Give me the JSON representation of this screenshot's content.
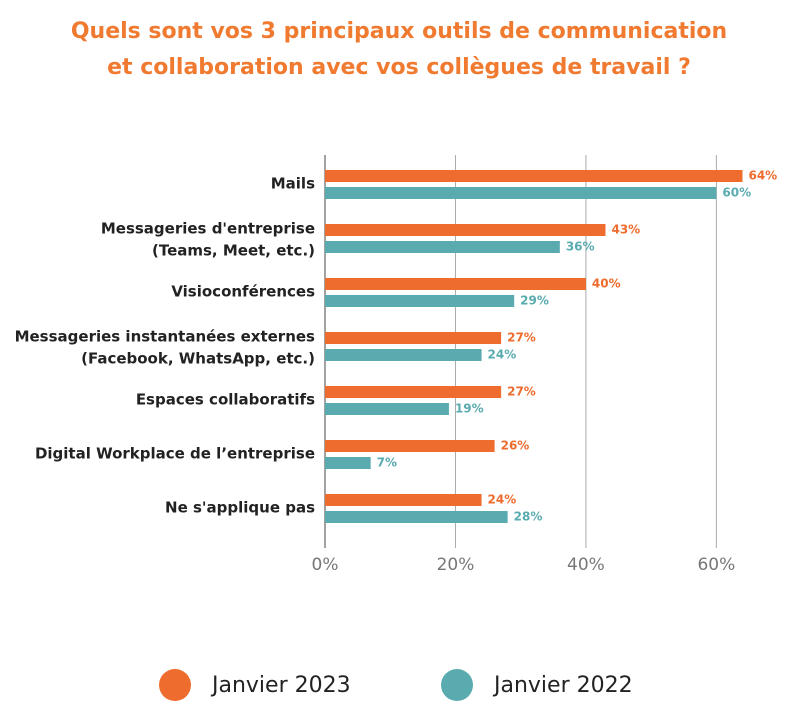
{
  "chart_data": {
    "type": "barh",
    "title": [
      "Quels sont vos 3 principaux outils de communication",
      "et collaboration avec vos collègues de travail ?"
    ],
    "categories": [
      [
        "Mails"
      ],
      [
        "Messageries d'entreprise",
        "(Teams, Meet, etc.)"
      ],
      [
        "Visioconférences"
      ],
      [
        "Messageries instantanées externes",
        "(Facebook, WhatsApp, etc.)"
      ],
      [
        "Espaces collaboratifs"
      ],
      [
        "Digital Workplace de l’entreprise"
      ],
      [
        "Ne s'applique pas"
      ]
    ],
    "series": [
      {
        "name": "Janvier 2023",
        "color": "#ee6c2d",
        "values": [
          64,
          43,
          40,
          27,
          27,
          26,
          24
        ],
        "value_labels": [
          "64%",
          "43%",
          "40%",
          "27%",
          "27%",
          "26%",
          "24%"
        ]
      },
      {
        "name": "Janvier 2022",
        "color": "#5aabb0",
        "values": [
          60,
          36,
          29,
          24,
          19,
          7,
          28
        ],
        "value_labels": [
          "60%",
          "36%",
          "29%",
          "24%",
          "19%",
          "7%",
          "28%"
        ]
      }
    ],
    "xlim": [
      0,
      65
    ],
    "xticks": [
      {
        "value": 0,
        "label": "0%"
      },
      {
        "value": 20,
        "label": "20%"
      },
      {
        "value": 40,
        "label": "40%"
      },
      {
        "value": 60,
        "label": "60%"
      }
    ],
    "grid": true,
    "legend": "bottom",
    "title_color": "#f07a30"
  }
}
